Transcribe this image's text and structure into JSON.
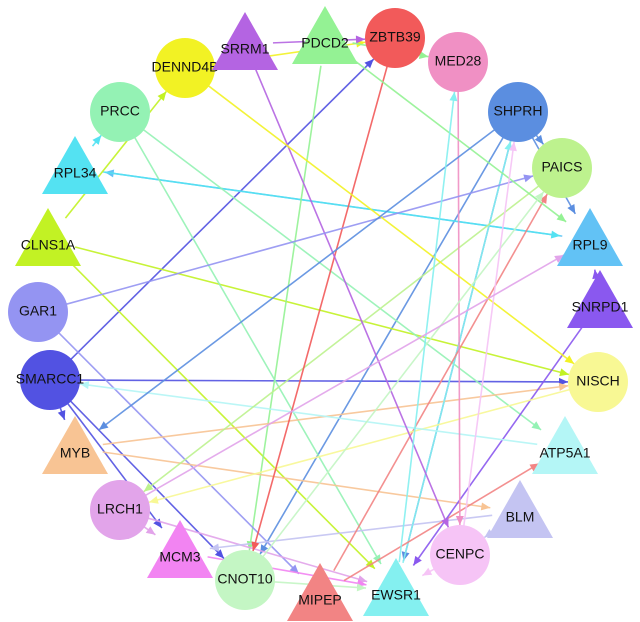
{
  "nodes": [
    {
      "label": "ZBTB39",
      "shape": "circle",
      "color": "#f25a5a"
    },
    {
      "label": "MED28",
      "shape": "circle",
      "color": "#f090c4"
    },
    {
      "label": "SHPRH",
      "shape": "circle",
      "color": "#5b8ee0"
    },
    {
      "label": "PAICS",
      "shape": "circle",
      "color": "#bdf28e"
    },
    {
      "label": "RPL9",
      "shape": "triangle",
      "color": "#62c2f5"
    },
    {
      "label": "SNRPD1",
      "shape": "triangle",
      "color": "#8a58ef"
    },
    {
      "label": "NISCH",
      "shape": "circle",
      "color": "#f8f894"
    },
    {
      "label": "ATP5A1",
      "shape": "triangle",
      "color": "#b4f6f6"
    },
    {
      "label": "BLM",
      "shape": "triangle",
      "color": "#c4c4f2"
    },
    {
      "label": "CENPC",
      "shape": "circle",
      "color": "#f6c4f6"
    },
    {
      "label": "EWSR1",
      "shape": "triangle",
      "color": "#84f0f0"
    },
    {
      "label": "MIPEP",
      "shape": "triangle",
      "color": "#f28484"
    },
    {
      "label": "CNOT10",
      "shape": "circle",
      "color": "#c4f6c4"
    },
    {
      "label": "MCM3",
      "shape": "triangle",
      "color": "#f284f2"
    },
    {
      "label": "LRCH1",
      "shape": "circle",
      "color": "#e2a4ea"
    },
    {
      "label": "MYB",
      "shape": "triangle",
      "color": "#f8c494"
    },
    {
      "label": "SMARCC1",
      "shape": "circle",
      "color": "#5252e2"
    },
    {
      "label": "GAR1",
      "shape": "circle",
      "color": "#9494f2"
    },
    {
      "label": "CLNS1A",
      "shape": "triangle",
      "color": "#c2f224"
    },
    {
      "label": "RPL34",
      "shape": "triangle",
      "color": "#54e2f2"
    },
    {
      "label": "PRCC",
      "shape": "circle",
      "color": "#94f2b4"
    },
    {
      "label": "DENND4B",
      "shape": "circle",
      "color": "#f2f224"
    },
    {
      "label": "SRRM1",
      "shape": "triangle",
      "color": "#b464e2"
    },
    {
      "label": "PDCD2",
      "shape": "triangle",
      "color": "#94f294"
    }
  ]
}
